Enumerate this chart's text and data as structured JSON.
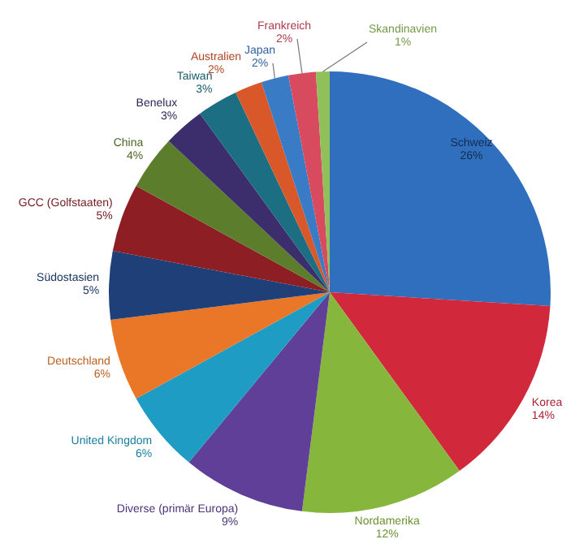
{
  "chart_data": {
    "type": "pie",
    "categories": [
      "Schweiz",
      "Korea",
      "Nordamerika",
      "Diverse (primär Europa)",
      "United Kingdom",
      "Deutschland",
      "Südostasien",
      "GCC (Golfstaaten)",
      "China",
      "Benelux",
      "Taiwan",
      "Australien",
      "Japan",
      "Frankreich",
      "Skandinavien"
    ],
    "values": [
      26,
      14,
      12,
      9,
      6,
      6,
      5,
      5,
      4,
      3,
      3,
      2,
      2,
      2,
      1
    ],
    "value_labels": [
      "26%",
      "14%",
      "12%",
      "9%",
      "6%",
      "6%",
      "5%",
      "5%",
      "4%",
      "3%",
      "3%",
      "2%",
      "2%",
      "2%",
      "1%"
    ],
    "colors": [
      "#2f6fbd",
      "#d1283c",
      "#86b63c",
      "#5f3f97",
      "#1f9cc4",
      "#ea7628",
      "#1f3f78",
      "#8c1e24",
      "#5c7d2c",
      "#3c2e6c",
      "#1c6e82",
      "#d9582a",
      "#3a7bc6",
      "#d84a5e",
      "#8fc05a"
    ],
    "legend": false
  }
}
